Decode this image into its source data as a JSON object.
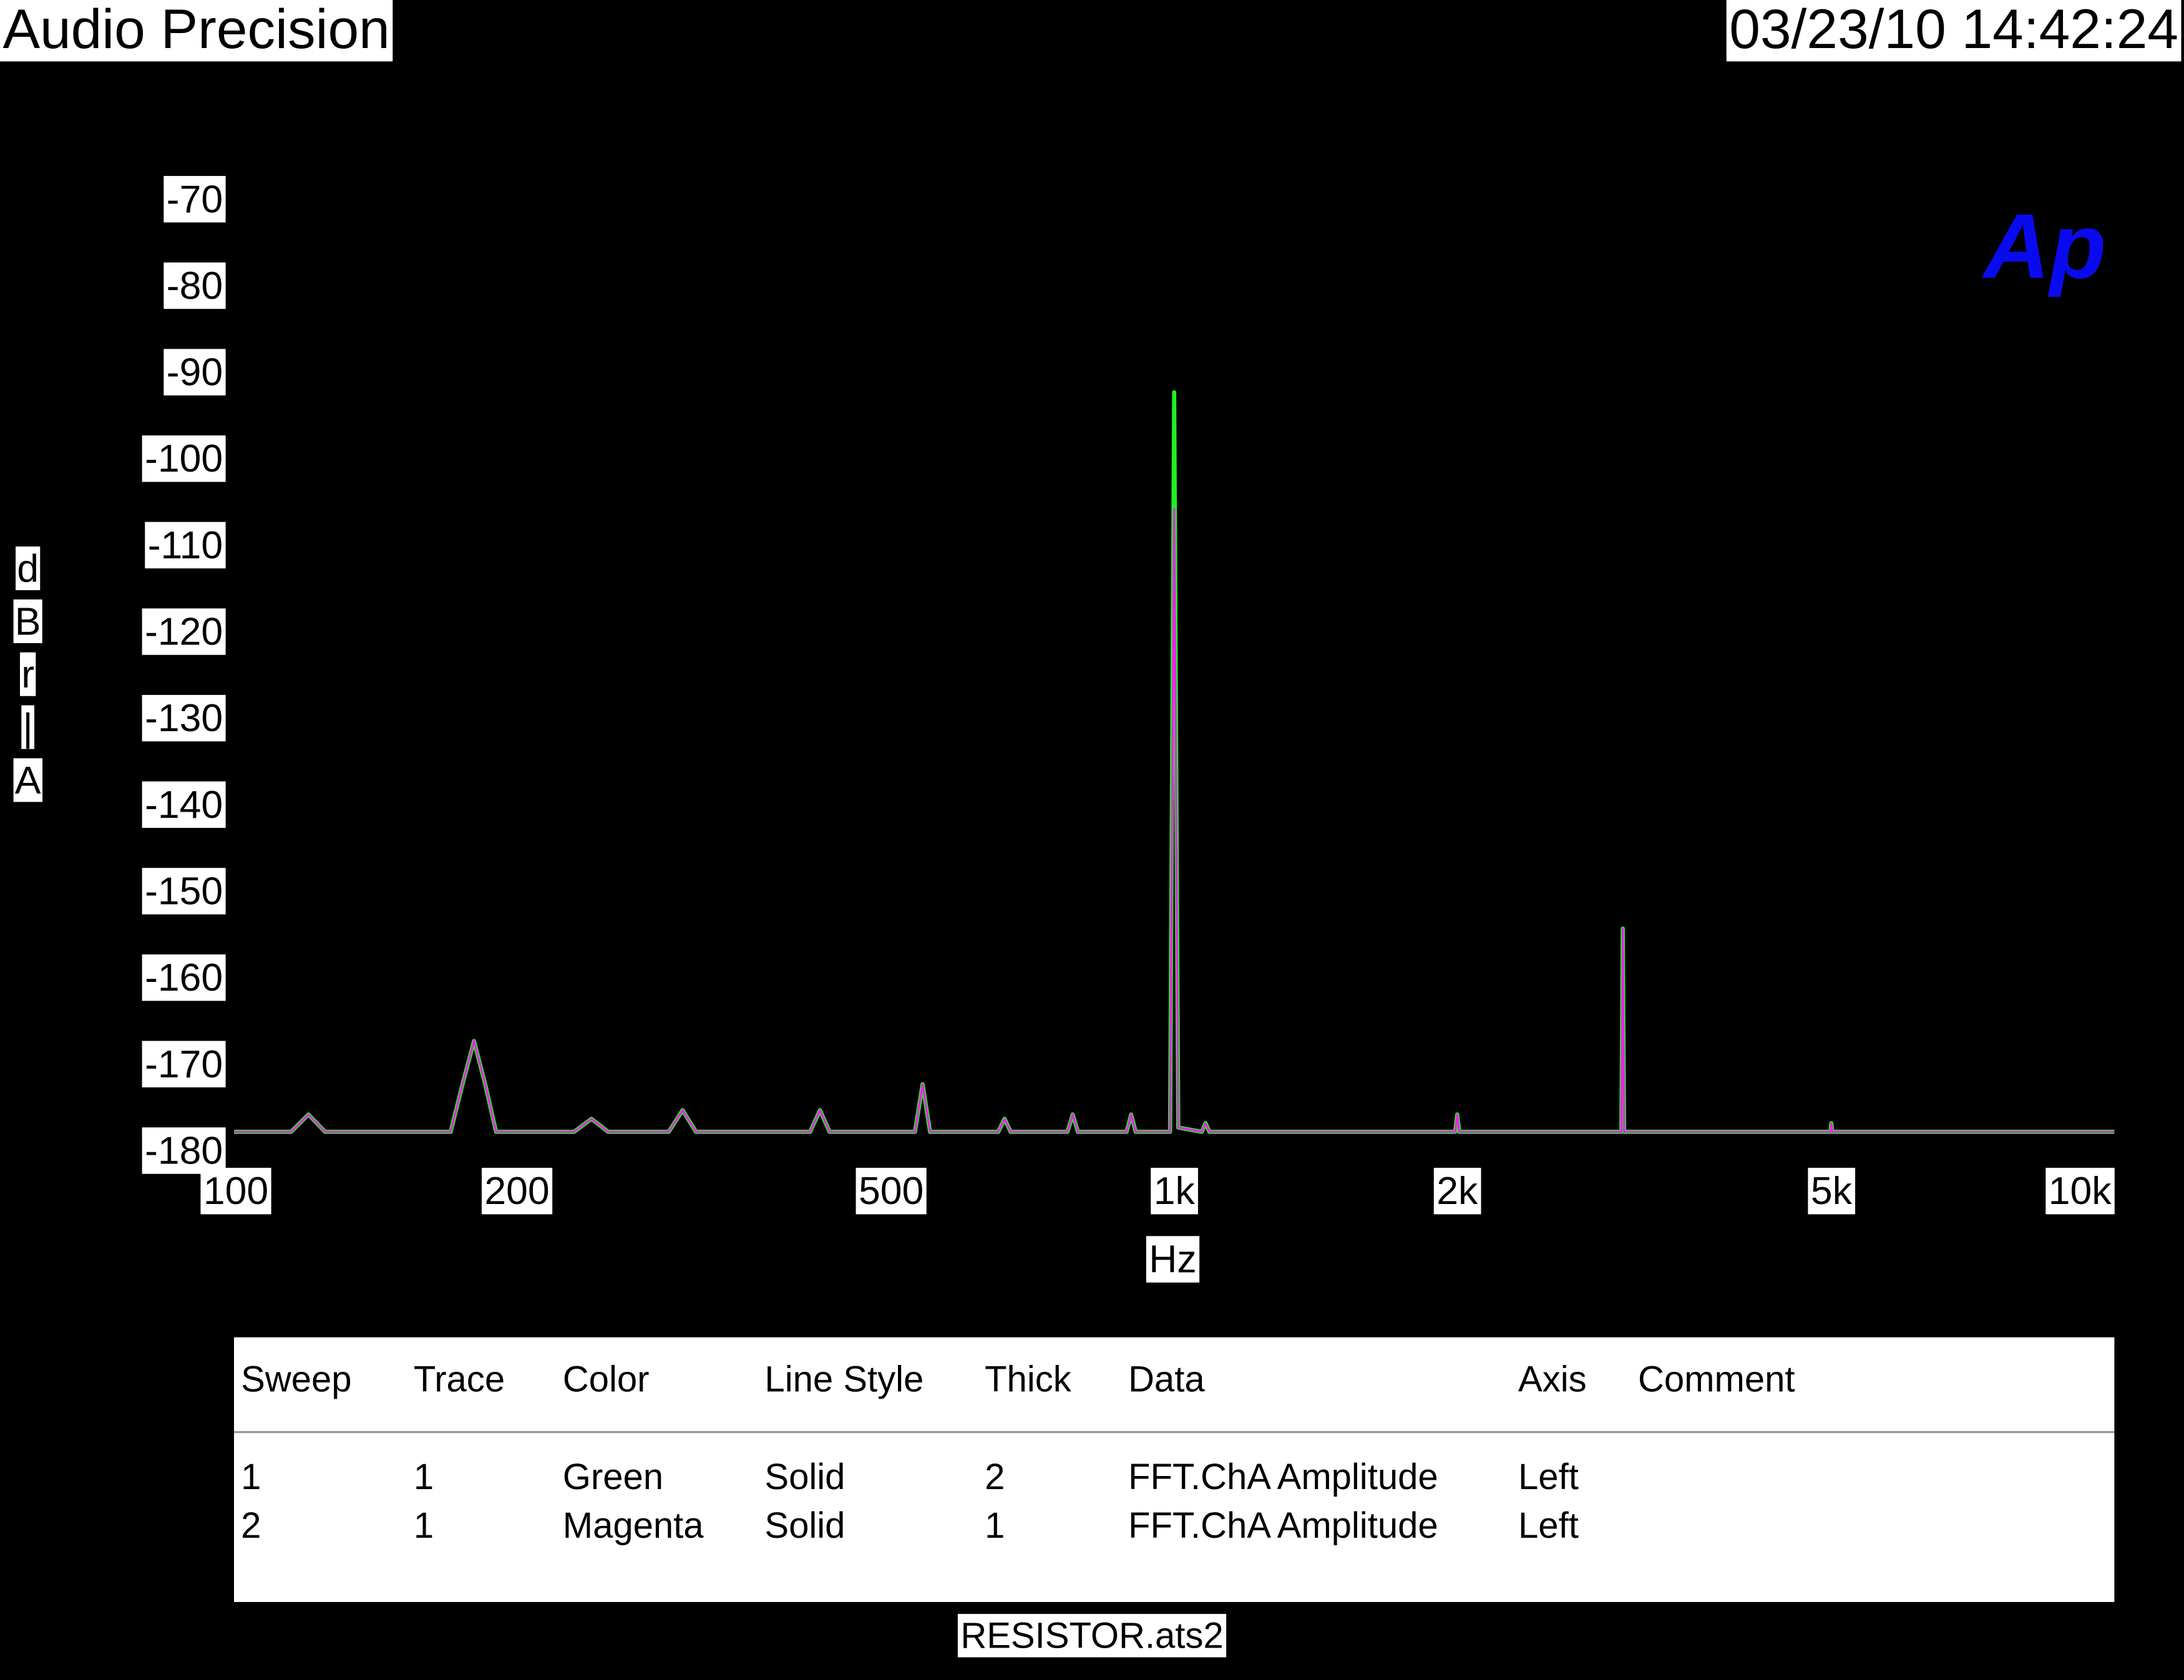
{
  "chart_data": {
    "type": "line",
    "title": "Audio Precision",
    "timestamp": "03/23/10 14:42:24",
    "logo": "Ap",
    "ylabel": "dBr A",
    "xlabel": "Hz",
    "footer": "RESISTOR.ats2",
    "xscale": "log",
    "grid": false,
    "xlim": [
      100,
      10000
    ],
    "ylim": [
      -180,
      -70
    ],
    "xticks": [
      100,
      200,
      500,
      {
        "value": 1000,
        "label": "1k"
      },
      {
        "value": 2000,
        "label": "2k"
      },
      {
        "value": 5000,
        "label": "5k"
      },
      {
        "value": 10000,
        "label": "10k"
      }
    ],
    "yticks": [
      -70,
      -80,
      -90,
      -100,
      -110,
      -120,
      -130,
      -140,
      -150,
      -160,
      -170,
      -180
    ],
    "x": [
      100,
      115,
      120,
      125,
      170,
      175,
      180,
      185,
      190,
      230,
      240,
      250,
      290,
      300,
      310,
      410,
      420,
      430,
      530,
      540,
      550,
      650,
      660,
      670,
      770,
      780,
      790,
      890,
      900,
      910,
      990,
      1000,
      1010,
      1070,
      1080,
      1090,
      1990,
      2000,
      2010,
      2990,
      3000,
      3010,
      4990,
      5000,
      5010,
      10000
    ],
    "series": [
      {
        "color": "#22ee22",
        "width": 3,
        "values": [
          -177.5,
          -177.5,
          -175.5,
          -177.5,
          -177.5,
          -172,
          -167,
          -172,
          -177.5,
          -177.5,
          -176,
          -177.5,
          -177.5,
          -175,
          -177.5,
          -177.5,
          -175,
          -177.5,
          -177.5,
          -172,
          -177.5,
          -177.5,
          -176,
          -177.5,
          -177.5,
          -175.5,
          -177.5,
          -177.5,
          -175.5,
          -177.5,
          -177.5,
          -92,
          -177,
          -177.5,
          -176.5,
          -177.5,
          -177.5,
          -175.5,
          -177.5,
          -177.5,
          -154,
          -177.5,
          -177.5,
          -176.5,
          -177.5,
          -177.5
        ]
      },
      {
        "color": "#ee22ee",
        "width": 1.5,
        "values": [
          -177.5,
          -177.5,
          -175.5,
          -177.5,
          -177.5,
          -172,
          -167,
          -172,
          -177.5,
          -177.5,
          -176,
          -177.5,
          -177.5,
          -175,
          -177.5,
          -177.5,
          -175,
          -177.5,
          -177.5,
          -172,
          -177.5,
          -177.5,
          -176,
          -177.5,
          -177.5,
          -175.5,
          -177.5,
          -177.5,
          -175.5,
          -177.5,
          -177.5,
          -105.5,
          -177,
          -177.5,
          -176.5,
          -177.5,
          -177.5,
          -175.5,
          -177.5,
          -177.5,
          -154,
          -177.5,
          -177.5,
          -176.5,
          -177.5,
          -177.5
        ]
      }
    ],
    "legend_table": {
      "columns": [
        "Sweep",
        "Trace",
        "Color",
        "Line Style",
        "Thick",
        "Data",
        "Axis",
        "Comment"
      ],
      "rows": [
        [
          "1",
          "1",
          "Green",
          "Solid",
          "2",
          "FFT.ChA Amplitude",
          "Left"
        ],
        [
          "2",
          "1",
          "Magenta",
          "Solid",
          "1",
          "FFT.ChA Amplitude",
          "Left"
        ]
      ]
    }
  }
}
